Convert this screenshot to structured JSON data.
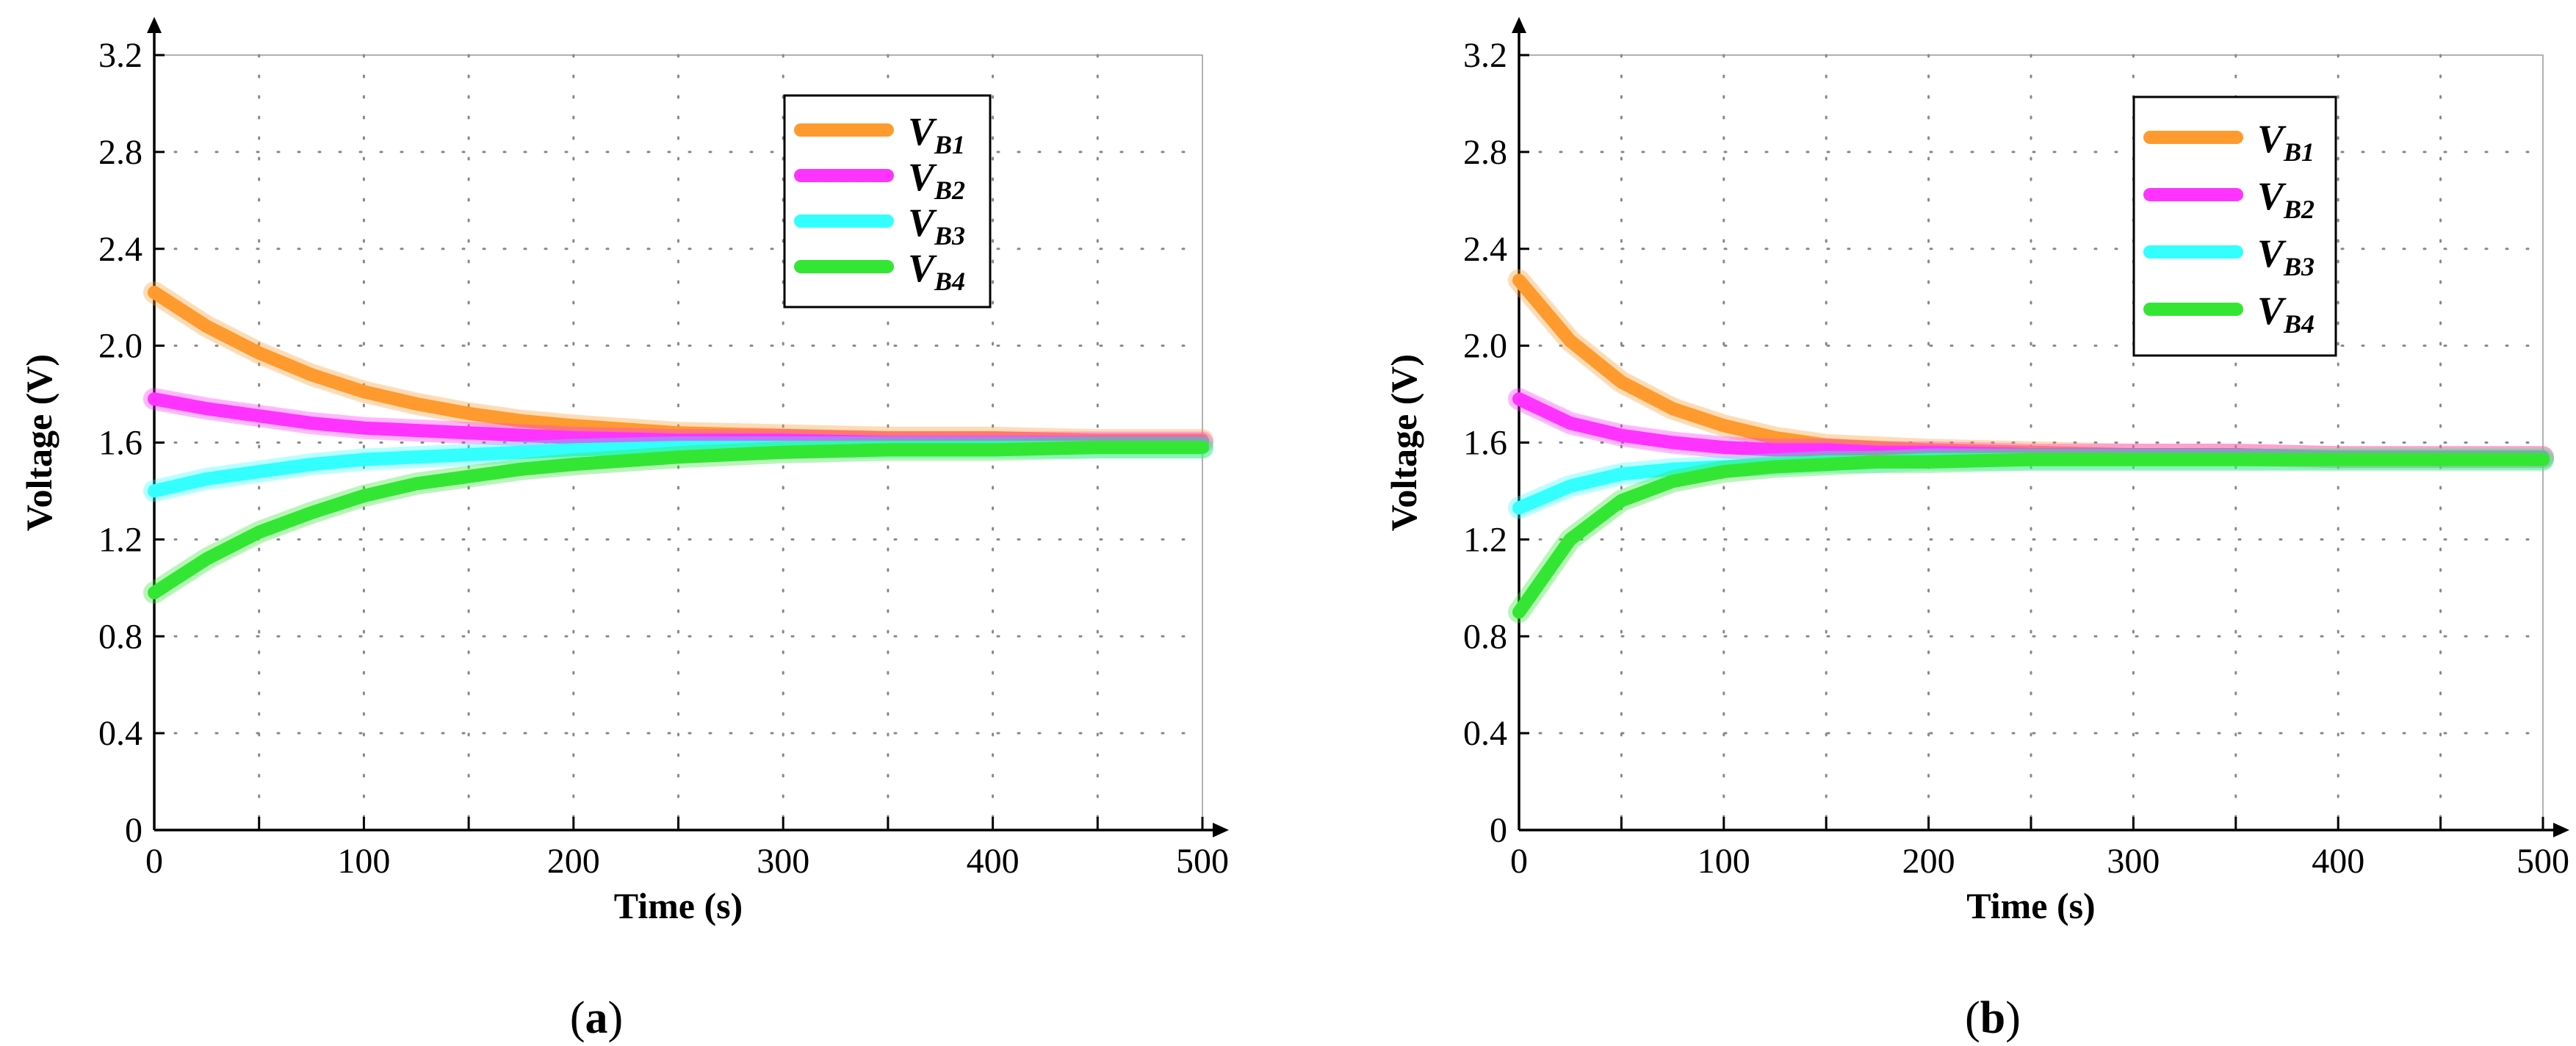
{
  "figure": {
    "panels": [
      {
        "label": "a",
        "paren_open": "(",
        "paren_close": ")"
      },
      {
        "label": "b",
        "paren_open": "(",
        "paren_close": ")"
      }
    ]
  },
  "chart_data": [
    {
      "type": "line",
      "panel": "a",
      "xlabel": "Time (s)",
      "ylabel": "Voltage (V)",
      "xlim": [
        0,
        500
      ],
      "ylim": [
        0,
        3.2
      ],
      "xticks": [
        "0",
        "100",
        "200",
        "300",
        "400",
        "500"
      ],
      "yticks": [
        "0",
        "0.4",
        "0.8",
        "1.2",
        "1.6",
        "2.0",
        "2.4",
        "2.8",
        "3.2"
      ],
      "grid": true,
      "legend_position": "top-right",
      "x": [
        0,
        25,
        50,
        75,
        100,
        125,
        150,
        175,
        200,
        250,
        300,
        350,
        400,
        450,
        500
      ],
      "series": [
        {
          "name": "V",
          "sub": "B1",
          "color": "#ff9a2e",
          "values": [
            2.22,
            2.08,
            1.97,
            1.88,
            1.81,
            1.76,
            1.72,
            1.69,
            1.67,
            1.64,
            1.63,
            1.62,
            1.62,
            1.61,
            1.61
          ]
        },
        {
          "name": "V",
          "sub": "B2",
          "color": "#ff33ff",
          "values": [
            1.78,
            1.74,
            1.71,
            1.68,
            1.66,
            1.65,
            1.64,
            1.63,
            1.62,
            1.61,
            1.61,
            1.6,
            1.6,
            1.6,
            1.6
          ]
        },
        {
          "name": "V",
          "sub": "B3",
          "color": "#33ffff",
          "values": [
            1.4,
            1.45,
            1.48,
            1.51,
            1.53,
            1.54,
            1.55,
            1.56,
            1.57,
            1.58,
            1.58,
            1.58,
            1.58,
            1.58,
            1.58
          ]
        },
        {
          "name": "V",
          "sub": "B4",
          "color": "#33e633",
          "values": [
            0.98,
            1.12,
            1.23,
            1.31,
            1.38,
            1.43,
            1.46,
            1.49,
            1.51,
            1.54,
            1.56,
            1.57,
            1.57,
            1.58,
            1.58
          ]
        }
      ]
    },
    {
      "type": "line",
      "panel": "b",
      "xlabel": "Time (s)",
      "ylabel": "Voltage (V)",
      "xlim": [
        0,
        500
      ],
      "ylim": [
        0,
        3.2
      ],
      "xticks": [
        "0",
        "100",
        "200",
        "300",
        "400",
        "500"
      ],
      "yticks": [
        "0",
        "0.4",
        "0.8",
        "1.2",
        "1.6",
        "2.0",
        "2.4",
        "2.8",
        "3.2"
      ],
      "grid": true,
      "legend_position": "top-right",
      "x": [
        0,
        25,
        50,
        75,
        100,
        125,
        150,
        175,
        200,
        250,
        300,
        350,
        400,
        450,
        500
      ],
      "series": [
        {
          "name": "V",
          "sub": "B1",
          "color": "#ff9a2e",
          "values": [
            2.27,
            2.02,
            1.85,
            1.74,
            1.67,
            1.62,
            1.59,
            1.58,
            1.57,
            1.56,
            1.55,
            1.55,
            1.54,
            1.54,
            1.54
          ]
        },
        {
          "name": "V",
          "sub": "B2",
          "color": "#ff33ff",
          "values": [
            1.78,
            1.68,
            1.63,
            1.6,
            1.58,
            1.57,
            1.57,
            1.56,
            1.56,
            1.55,
            1.55,
            1.55,
            1.54,
            1.54,
            1.54
          ]
        },
        {
          "name": "V",
          "sub": "B3",
          "color": "#33ffff",
          "values": [
            1.33,
            1.42,
            1.47,
            1.49,
            1.5,
            1.51,
            1.52,
            1.52,
            1.53,
            1.53,
            1.53,
            1.53,
            1.53,
            1.53,
            1.53
          ]
        },
        {
          "name": "V",
          "sub": "B4",
          "color": "#33e633",
          "values": [
            0.9,
            1.2,
            1.36,
            1.44,
            1.48,
            1.5,
            1.51,
            1.52,
            1.52,
            1.53,
            1.53,
            1.53,
            1.53,
            1.53,
            1.53
          ]
        }
      ]
    }
  ]
}
